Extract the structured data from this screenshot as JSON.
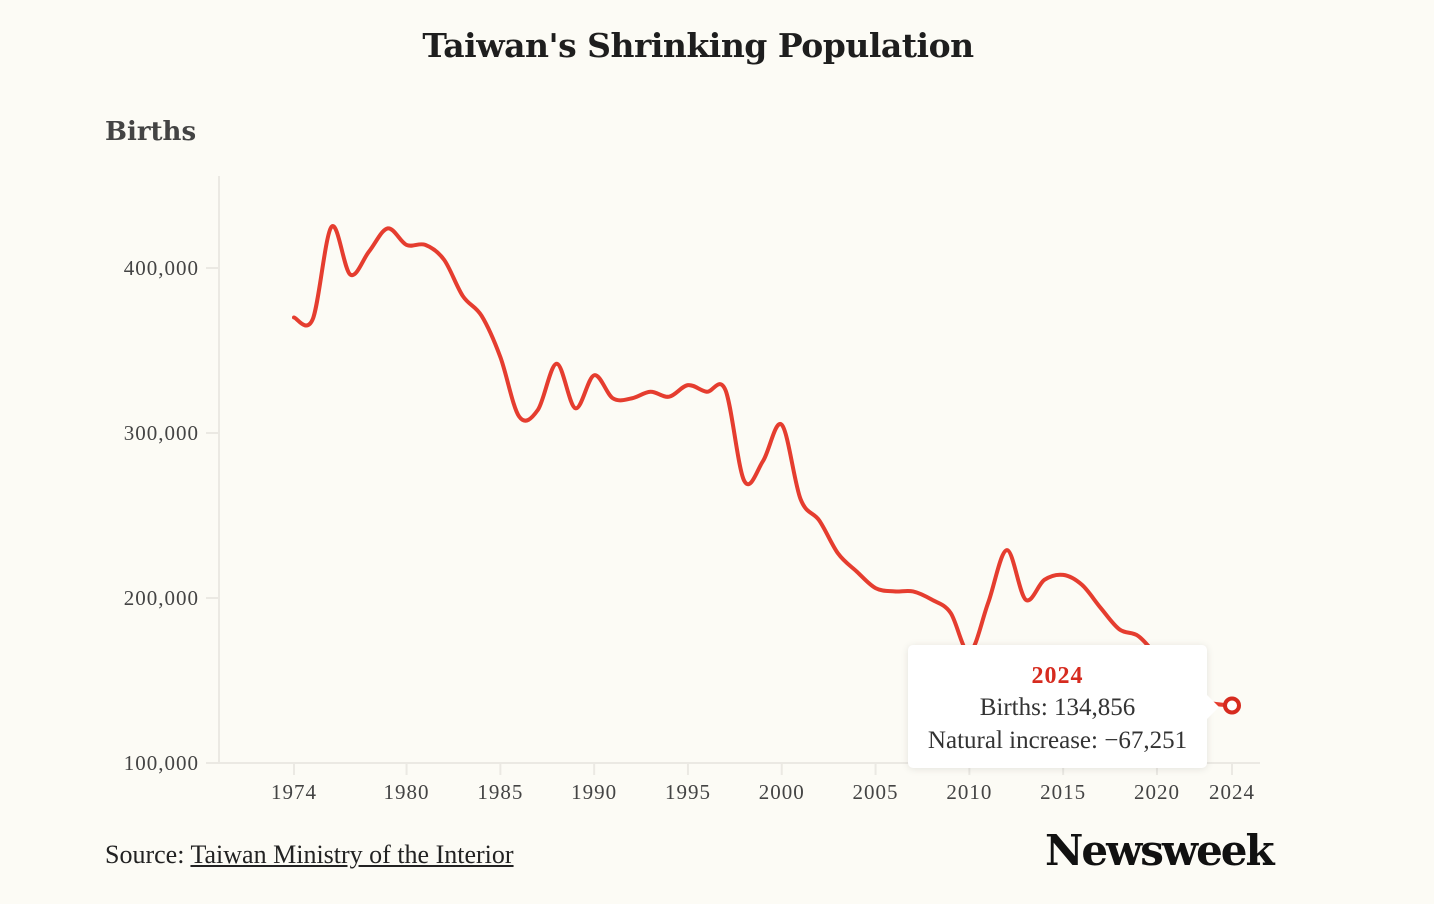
{
  "chart_data": {
    "type": "line",
    "title": "Taiwan's Shrinking Population",
    "ylabel": "Births",
    "xlabel": "",
    "ylim": [
      100000,
      450000
    ],
    "xlim": [
      1974,
      2024
    ],
    "yticks": [
      100000,
      200000,
      300000,
      400000
    ],
    "ytick_labels": [
      "100,000",
      "200,000",
      "300,000",
      "400,000"
    ],
    "xticks": [
      1974,
      1980,
      1985,
      1990,
      1995,
      2000,
      2005,
      2010,
      2015,
      2020,
      2024
    ],
    "xtick_labels": [
      "1974",
      "1980",
      "1985",
      "1990",
      "1995",
      "2000",
      "2005",
      "2010",
      "2015",
      "2020",
      "2024"
    ],
    "grid": false,
    "series": [
      {
        "name": "Births",
        "color": "#e53d2f",
        "x": [
          1974,
          1975,
          1976,
          1977,
          1978,
          1979,
          1980,
          1981,
          1982,
          1983,
          1984,
          1985,
          1986,
          1987,
          1988,
          1989,
          1990,
          1991,
          1992,
          1993,
          1994,
          1995,
          1996,
          1997,
          1998,
          1999,
          2000,
          2001,
          2002,
          2003,
          2004,
          2005,
          2006,
          2007,
          2008,
          2009,
          2010,
          2011,
          2012,
          2013,
          2014,
          2015,
          2016,
          2017,
          2018,
          2019,
          2020,
          2021,
          2022,
          2023,
          2024
        ],
        "values": [
          370000,
          369000,
          425000,
          396000,
          410000,
          424000,
          414000,
          414000,
          405000,
          383000,
          371000,
          346000,
          310000,
          314000,
          342000,
          315000,
          335000,
          321000,
          321000,
          325000,
          322000,
          329000,
          325000,
          326000,
          271000,
          283000,
          305000,
          260000,
          247000,
          227000,
          216000,
          206000,
          204000,
          204000,
          199000,
          191000,
          167000,
          197000,
          229000,
          199000,
          211000,
          214000,
          208000,
          194000,
          181000,
          177000,
          165000,
          154000,
          139000,
          136000,
          134856
        ]
      }
    ],
    "highlight": {
      "year": "2024",
      "births_label": "Births: 134,856",
      "natural_increase_label": "Natural increase: −67,251",
      "marker_value": 134856
    },
    "legend": "none"
  },
  "header": {
    "title": "Taiwan's Shrinking Population",
    "y_axis_title": "Births"
  },
  "footer": {
    "source_prefix": "Source: ",
    "source_link": "Taiwan Ministry of the Interior",
    "logo": "Newsweek"
  },
  "tooltip": {
    "year": "2024",
    "births": "Births: 134,856",
    "natural_increase": "Natural increase: −67,251"
  }
}
